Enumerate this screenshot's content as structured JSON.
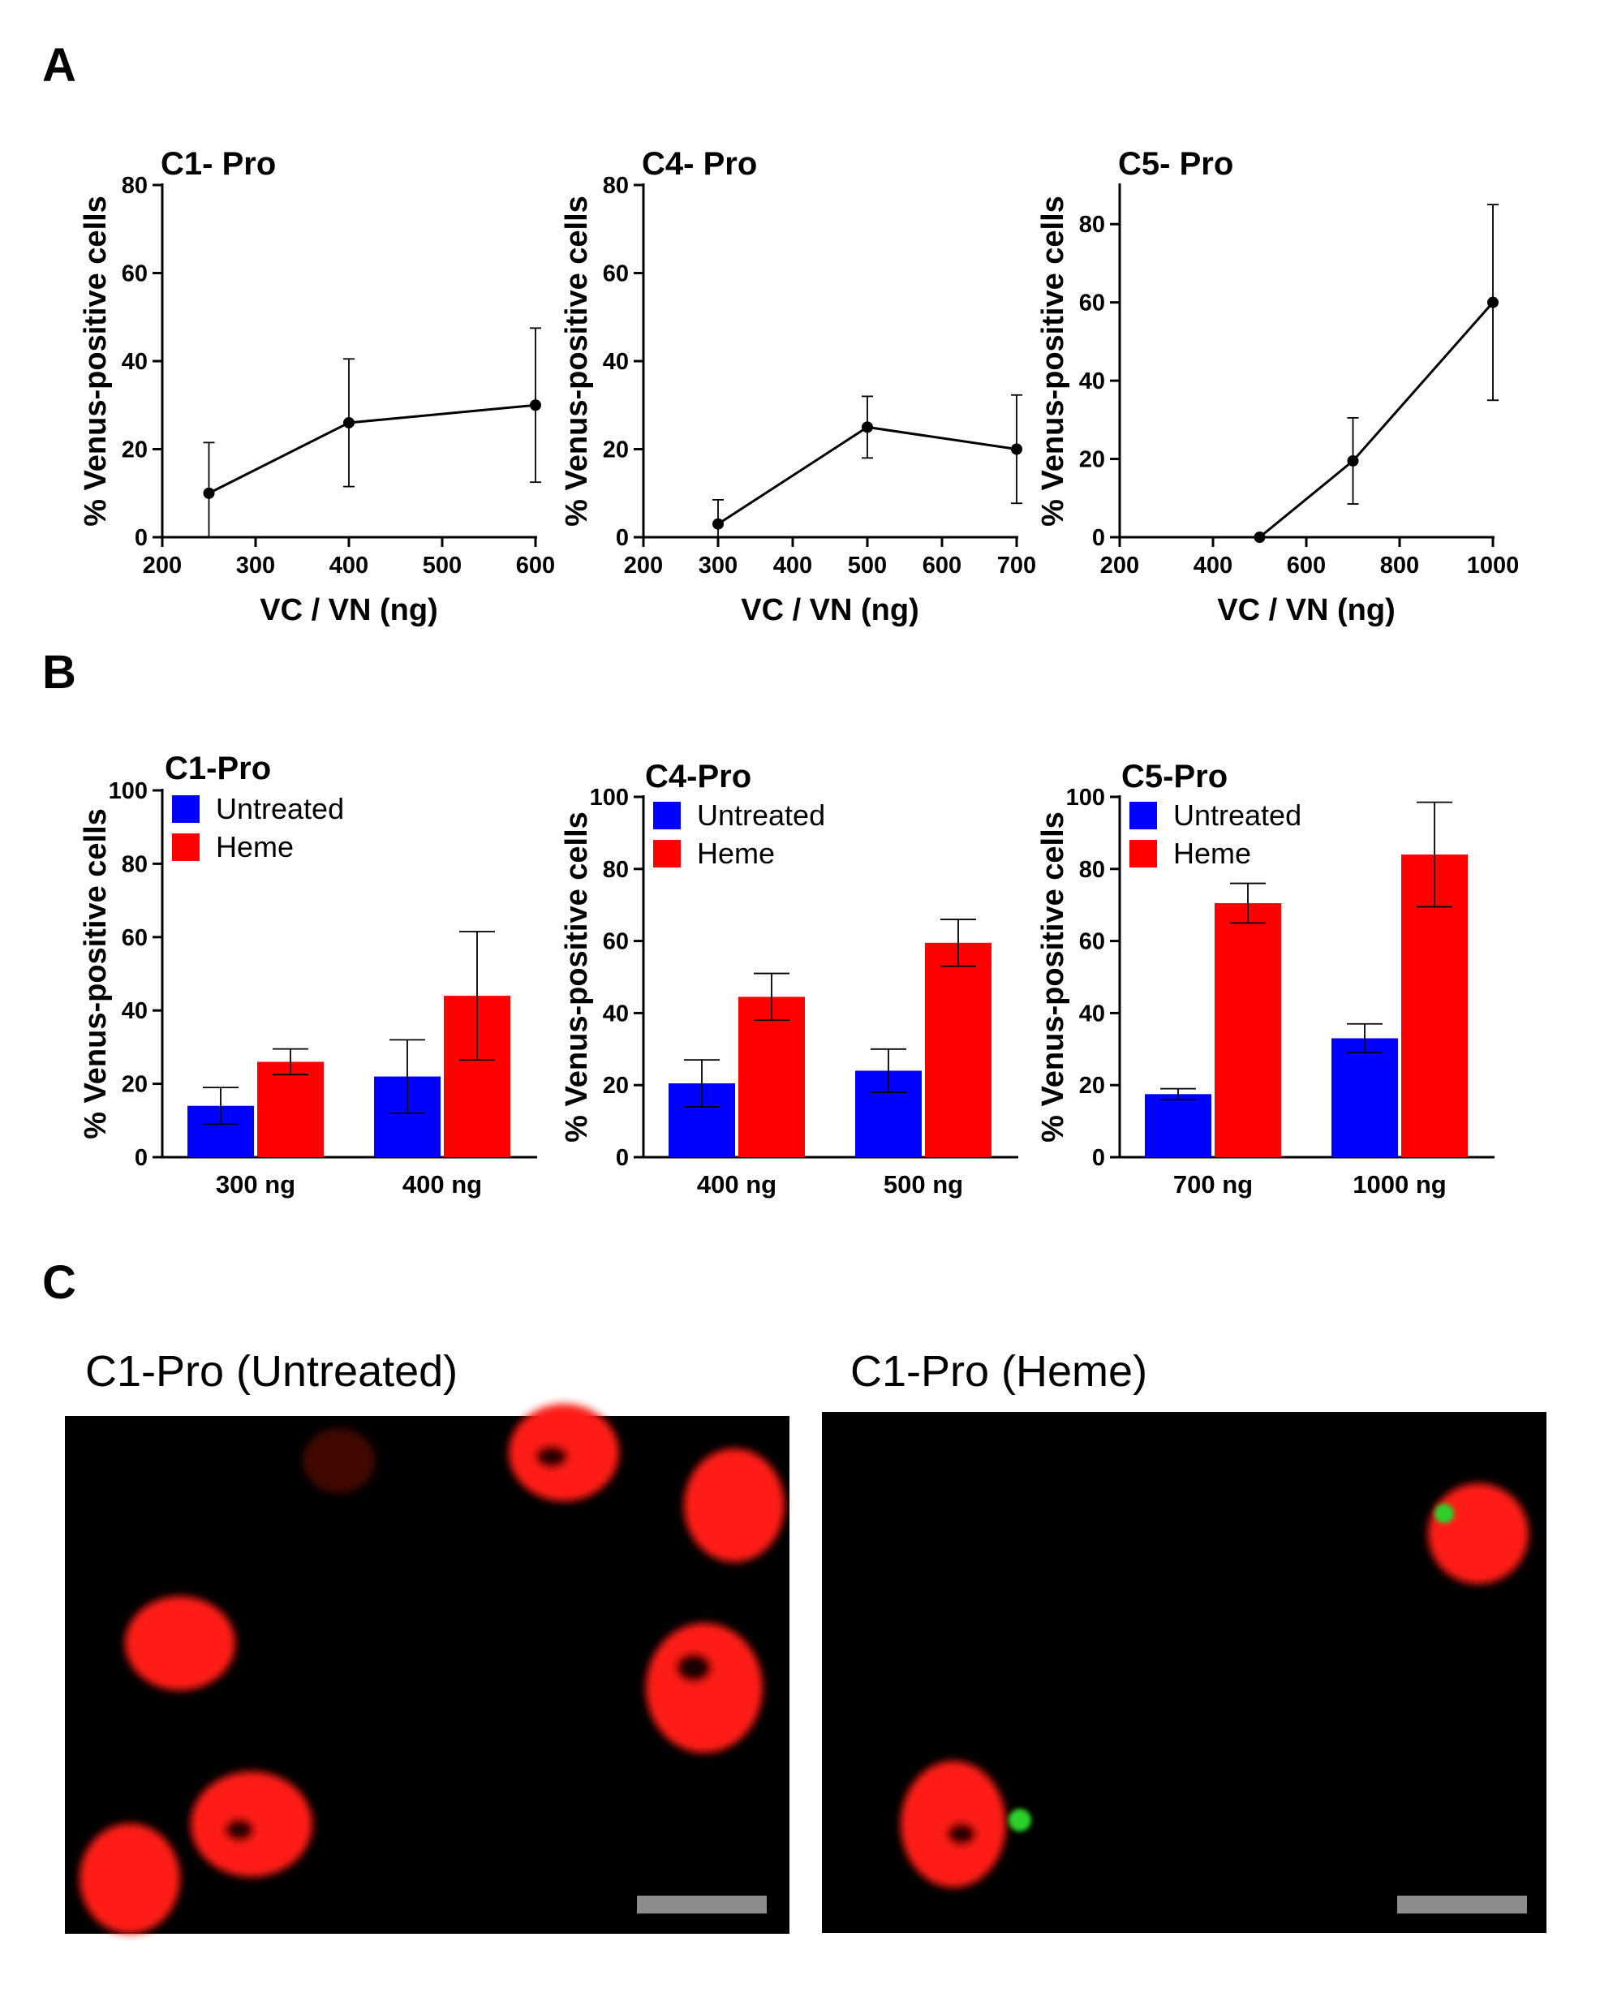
{
  "panels": {
    "a": "A",
    "b": "B",
    "c": "C"
  },
  "colors": {
    "untreated": "#0000ff",
    "heme": "#ff0000",
    "line": "#000000",
    "cell_red": "#ff1a12",
    "venus_green": "#2cd12c",
    "scalebar": "#8c8c8c"
  },
  "chart_data": [
    {
      "id": "a1",
      "type": "line",
      "title": "C1- Pro",
      "xlabel": "VC / VN (ng)",
      "ylabel": "% Venus-positive cells",
      "xlim": [
        200,
        600
      ],
      "ylim": [
        0,
        80
      ],
      "xticks": [
        "200",
        "300",
        "400",
        "500",
        "600"
      ],
      "yticks": [
        "0",
        "20",
        "40",
        "60",
        "80"
      ],
      "points": [
        {
          "x": 250,
          "y": 10,
          "err": 11.5
        },
        {
          "x": 400,
          "y": 26,
          "err": 14.5
        },
        {
          "x": 600,
          "y": 30,
          "err": 17.5
        }
      ]
    },
    {
      "id": "a2",
      "type": "line",
      "title": "C4- Pro",
      "xlabel": "VC / VN (ng)",
      "ylabel": "% Venus-positive cells",
      "xlim": [
        200,
        700
      ],
      "ylim": [
        0,
        80
      ],
      "xticks": [
        "200",
        "300",
        "400",
        "500",
        "600",
        "700"
      ],
      "yticks": [
        "0",
        "20",
        "40",
        "60",
        "80"
      ],
      "points": [
        {
          "x": 300,
          "y": 3,
          "err": 5.5
        },
        {
          "x": 500,
          "y": 25,
          "err": 7
        },
        {
          "x": 700,
          "y": 20,
          "err": 12.3
        }
      ]
    },
    {
      "id": "a3",
      "type": "line",
      "title": "C5- Pro",
      "xlabel": "VC / VN (ng)",
      "ylabel": "% Venus-positive cells",
      "xlim": [
        200,
        1000
      ],
      "ylim": [
        0,
        90
      ],
      "xticks": [
        "200",
        "400",
        "600",
        "800",
        "1000"
      ],
      "yticks": [
        "0",
        "20",
        "40",
        "60",
        "80"
      ],
      "points": [
        {
          "x": 500,
          "y": 0,
          "err": 0
        },
        {
          "x": 700,
          "y": 19.5,
          "err": 11
        },
        {
          "x": 1000,
          "y": 60,
          "err": 25
        }
      ]
    },
    {
      "id": "b1",
      "type": "bar",
      "title": "C1-Pro",
      "ylabel": "% Venus-positive cells",
      "ylim": [
        0,
        100
      ],
      "yticks": [
        "0",
        "20",
        "40",
        "60",
        "80",
        "100"
      ],
      "categories": [
        "300 ng",
        "400 ng"
      ],
      "series": [
        {
          "name": "Untreated",
          "values": [
            14,
            22
          ],
          "errors": [
            5,
            10
          ]
        },
        {
          "name": "Heme",
          "values": [
            26,
            44
          ],
          "errors": [
            3.5,
            17.5
          ]
        }
      ]
    },
    {
      "id": "b2",
      "type": "bar",
      "title": "C4-Pro",
      "ylabel": "% Venus-positive cells",
      "ylim": [
        0,
        100
      ],
      "yticks": [
        "0",
        "20",
        "40",
        "60",
        "80",
        "100"
      ],
      "categories": [
        "400 ng",
        "500 ng"
      ],
      "series": [
        {
          "name": "Untreated",
          "values": [
            20.5,
            24
          ],
          "errors": [
            6.5,
            6
          ]
        },
        {
          "name": "Heme",
          "values": [
            44.5,
            59.5
          ],
          "errors": [
            6.5,
            6.5
          ]
        }
      ]
    },
    {
      "id": "b3",
      "type": "bar",
      "title": "C5-Pro",
      "ylabel": "% Venus-positive cells",
      "ylim": [
        0,
        100
      ],
      "yticks": [
        "0",
        "20",
        "40",
        "60",
        "80",
        "100"
      ],
      "categories": [
        "700 ng",
        "1000 ng"
      ],
      "series": [
        {
          "name": "Untreated",
          "values": [
            17.5,
            33
          ],
          "errors": [
            1.5,
            4
          ]
        },
        {
          "name": "Heme",
          "values": [
            70.5,
            84
          ],
          "errors": [
            5.5,
            14.5
          ]
        }
      ]
    }
  ],
  "micrographs": [
    {
      "title": "C1-Pro (Untreated)"
    },
    {
      "title": "C1-Pro (Heme)"
    }
  ]
}
